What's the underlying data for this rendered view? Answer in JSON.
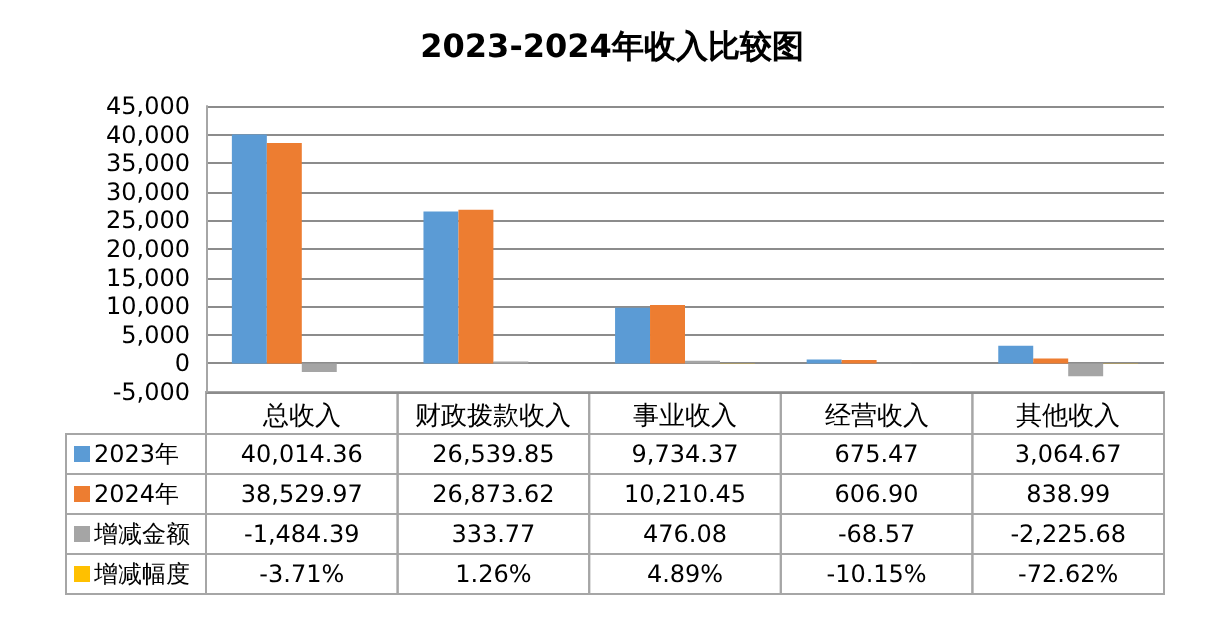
{
  "chart_data": {
    "type": "bar",
    "title": "2023-2024年收入比较图",
    "categories": [
      "总收入",
      "财政拨款收入",
      "事业收入",
      "经营收入",
      "其他收入"
    ],
    "series": [
      {
        "name": "2023年",
        "color": "#5b9bd5",
        "values": [
          40014.36,
          26539.85,
          9734.37,
          675.47,
          3064.67
        ],
        "value_labels": [
          "40,014.36",
          "26,539.85",
          "9,734.37",
          "675.47",
          "3,064.67"
        ]
      },
      {
        "name": "2024年",
        "color": "#ed7d31",
        "values": [
          38529.97,
          26873.62,
          10210.45,
          606.9,
          838.99
        ],
        "value_labels": [
          "38,529.97",
          "26,873.62",
          "10,210.45",
          "606.90",
          "838.99"
        ]
      },
      {
        "name": "增减金额",
        "color": "#a5a5a5",
        "values": [
          -1484.39,
          333.77,
          476.08,
          -68.57,
          -2225.68
        ],
        "value_labels": [
          "-1,484.39",
          "333.77",
          "476.08",
          "-68.57",
          "-2,225.68"
        ]
      },
      {
        "name": "增减幅度",
        "color": "#ffc000",
        "values": [
          -3.71,
          1.26,
          4.89,
          -10.15,
          -72.62
        ],
        "value_labels": [
          "-3.71%",
          "1.26%",
          "4.89%",
          "-10.15%",
          "-72.62%"
        ]
      }
    ],
    "ylim": [
      -5000,
      45000
    ],
    "yticks": [
      {
        "value": -5000,
        "label": "-5,000"
      },
      0,
      {
        "value": 5000,
        "label": "5,000"
      },
      {
        "value": 10000,
        "label": "10,000"
      },
      {
        "value": 15000,
        "label": "15,000"
      },
      {
        "value": 20000,
        "label": "20,000"
      },
      {
        "value": 25000,
        "label": "25,000"
      },
      {
        "value": 30000,
        "label": "30,000"
      },
      {
        "value": 35000,
        "label": "35,000"
      },
      {
        "value": 40000,
        "label": "40,000"
      },
      {
        "value": 45000,
        "label": "45,000"
      }
    ],
    "grid": true,
    "legend": "bottom left"
  }
}
